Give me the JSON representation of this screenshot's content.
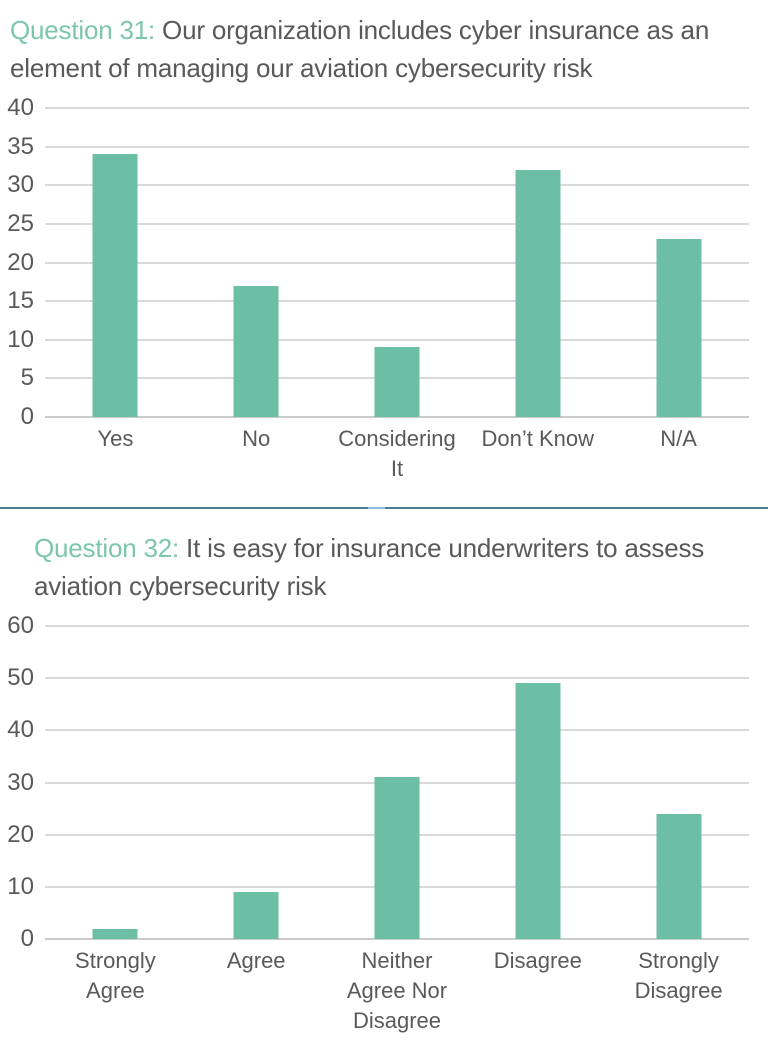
{
  "colors": {
    "bar": "#6CBFA4",
    "title_accent": "#7CC7A8",
    "title_text": "#58595B",
    "tick_text": "#595959",
    "gridline": "#D9D9D9",
    "divider": "#4C7A8E",
    "divider_highlight": "#8CBAE4"
  },
  "chart_data": [
    {
      "type": "bar",
      "title_prefix": "Question 31:",
      "title_rest": " Our organization includes cyber insurance as an element of managing our aviation cybersecurity risk",
      "categories": [
        "Yes",
        "No",
        "Considering It",
        "Don’t Know",
        "N/A"
      ],
      "category_labels": [
        "Yes",
        "No",
        "Considering\nIt",
        "Don’t Know",
        "N/A"
      ],
      "values": [
        34,
        17,
        9,
        32,
        23
      ],
      "yticks": [
        0,
        5,
        10,
        15,
        20,
        25,
        30,
        35,
        40
      ],
      "ylim": [
        0,
        40
      ],
      "ytick_step": 5,
      "grid": true,
      "legend": "none",
      "xlabel": "",
      "ylabel": ""
    },
    {
      "type": "bar",
      "title_prefix": "Question 32:",
      "title_rest": " It is easy for insurance underwriters to assess aviation cybersecurity risk",
      "categories": [
        "Strongly Agree",
        "Agree",
        "Neither Agree Nor Disagree",
        "Disagree",
        "Strongly Disagree"
      ],
      "category_labels": [
        "Strongly\nAgree",
        "Agree",
        "Neither\nAgree Nor\nDisagree",
        "Disagree",
        "Strongly\nDisagree"
      ],
      "values": [
        2,
        9,
        31,
        49,
        24
      ],
      "yticks": [
        0,
        10,
        20,
        30,
        40,
        50,
        60
      ],
      "ylim": [
        0,
        60
      ],
      "ytick_step": 10,
      "grid": true,
      "legend": "none",
      "xlabel": "",
      "ylabel": ""
    }
  ]
}
